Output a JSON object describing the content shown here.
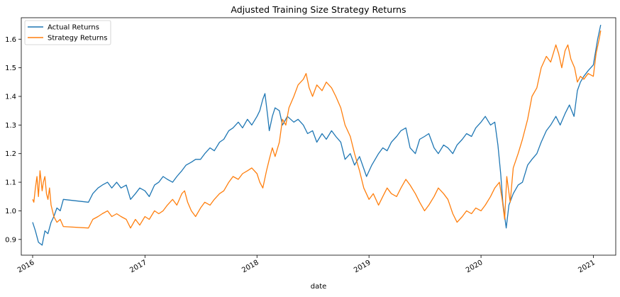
{
  "chart_data": {
    "type": "line",
    "title": "Adjusted Training Size Strategy Returns",
    "xlabel": "date",
    "ylabel": "",
    "xlim": [
      "2015-11-25",
      "2021-03-15"
    ],
    "ylim": [
      0.845,
      1.675
    ],
    "x_ticks": [
      "2016-01-01",
      "2017-01-01",
      "2018-01-01",
      "2019-01-01",
      "2020-01-01",
      "2021-01-01"
    ],
    "x_tick_labels": [
      "2016",
      "2017",
      "2018",
      "2019",
      "2020",
      "2021"
    ],
    "y_ticks": [
      0.9,
      1.0,
      1.1,
      1.2,
      1.3,
      1.4,
      1.5,
      1.6
    ],
    "y_tick_labels": [
      "0.9",
      "1.0",
      "1.1",
      "1.2",
      "1.3",
      "1.4",
      "1.5",
      "1.6"
    ],
    "grid": false,
    "legend_position": "upper-left",
    "series": [
      {
        "name": "Actual Returns",
        "color": "#1f77b4",
        "points": [
          [
            "2016-01-01",
            0.96
          ],
          [
            "2016-01-10",
            0.93
          ],
          [
            "2016-01-20",
            0.89
          ],
          [
            "2016-02-01",
            0.88
          ],
          [
            "2016-02-10",
            0.93
          ],
          [
            "2016-02-20",
            0.92
          ],
          [
            "2016-03-01",
            0.96
          ],
          [
            "2016-03-10",
            0.98
          ],
          [
            "2016-03-20",
            1.01
          ],
          [
            "2016-03-31",
            1.0
          ],
          [
            "2016-04-10",
            1.04
          ],
          [
            "2016-07-01",
            1.03
          ],
          [
            "2016-07-15",
            1.06
          ],
          [
            "2016-08-01",
            1.08
          ],
          [
            "2016-08-15",
            1.09
          ],
          [
            "2016-09-01",
            1.1
          ],
          [
            "2016-09-15",
            1.08
          ],
          [
            "2016-10-01",
            1.1
          ],
          [
            "2016-10-15",
            1.08
          ],
          [
            "2016-11-01",
            1.09
          ],
          [
            "2016-11-15",
            1.04
          ],
          [
            "2016-12-01",
            1.06
          ],
          [
            "2016-12-15",
            1.08
          ],
          [
            "2017-01-01",
            1.07
          ],
          [
            "2017-01-15",
            1.05
          ],
          [
            "2017-02-01",
            1.09
          ],
          [
            "2017-02-15",
            1.1
          ],
          [
            "2017-03-01",
            1.12
          ],
          [
            "2017-03-15",
            1.11
          ],
          [
            "2017-04-01",
            1.1
          ],
          [
            "2017-04-15",
            1.12
          ],
          [
            "2017-05-01",
            1.14
          ],
          [
            "2017-05-15",
            1.16
          ],
          [
            "2017-06-01",
            1.17
          ],
          [
            "2017-06-15",
            1.18
          ],
          [
            "2017-07-01",
            1.18
          ],
          [
            "2017-07-15",
            1.2
          ],
          [
            "2017-08-01",
            1.22
          ],
          [
            "2017-08-15",
            1.21
          ],
          [
            "2017-09-01",
            1.24
          ],
          [
            "2017-09-15",
            1.25
          ],
          [
            "2017-10-01",
            1.28
          ],
          [
            "2017-10-15",
            1.29
          ],
          [
            "2017-11-01",
            1.31
          ],
          [
            "2017-11-15",
            1.29
          ],
          [
            "2017-12-01",
            1.32
          ],
          [
            "2017-12-15",
            1.3
          ],
          [
            "2018-01-01",
            1.33
          ],
          [
            "2018-01-10",
            1.35
          ],
          [
            "2018-01-20",
            1.39
          ],
          [
            "2018-01-27",
            1.41
          ],
          [
            "2018-02-05",
            1.33
          ],
          [
            "2018-02-10",
            1.28
          ],
          [
            "2018-02-20",
            1.33
          ],
          [
            "2018-03-01",
            1.36
          ],
          [
            "2018-03-15",
            1.35
          ],
          [
            "2018-03-25",
            1.3
          ],
          [
            "2018-04-10",
            1.33
          ],
          [
            "2018-05-01",
            1.31
          ],
          [
            "2018-05-15",
            1.32
          ],
          [
            "2018-06-01",
            1.3
          ],
          [
            "2018-06-15",
            1.27
          ],
          [
            "2018-07-01",
            1.28
          ],
          [
            "2018-07-15",
            1.24
          ],
          [
            "2018-08-01",
            1.27
          ],
          [
            "2018-08-15",
            1.25
          ],
          [
            "2018-09-01",
            1.28
          ],
          [
            "2018-09-15",
            1.26
          ],
          [
            "2018-10-01",
            1.24
          ],
          [
            "2018-10-15",
            1.18
          ],
          [
            "2018-11-01",
            1.2
          ],
          [
            "2018-11-15",
            1.16
          ],
          [
            "2018-12-01",
            1.19
          ],
          [
            "2018-12-24",
            1.12
          ],
          [
            "2019-01-10",
            1.16
          ],
          [
            "2019-02-01",
            1.2
          ],
          [
            "2019-02-15",
            1.22
          ],
          [
            "2019-03-01",
            1.21
          ],
          [
            "2019-03-15",
            1.24
          ],
          [
            "2019-04-01",
            1.26
          ],
          [
            "2019-04-15",
            1.28
          ],
          [
            "2019-05-01",
            1.29
          ],
          [
            "2019-05-15",
            1.22
          ],
          [
            "2019-06-01",
            1.2
          ],
          [
            "2019-06-15",
            1.25
          ],
          [
            "2019-07-01",
            1.26
          ],
          [
            "2019-07-15",
            1.27
          ],
          [
            "2019-08-01",
            1.22
          ],
          [
            "2019-08-15",
            1.2
          ],
          [
            "2019-09-01",
            1.23
          ],
          [
            "2019-09-15",
            1.22
          ],
          [
            "2019-10-01",
            1.2
          ],
          [
            "2019-10-15",
            1.23
          ],
          [
            "2019-11-01",
            1.25
          ],
          [
            "2019-11-15",
            1.27
          ],
          [
            "2019-12-01",
            1.26
          ],
          [
            "2019-12-15",
            1.29
          ],
          [
            "2020-01-01",
            1.31
          ],
          [
            "2020-01-15",
            1.33
          ],
          [
            "2020-02-01",
            1.3
          ],
          [
            "2020-02-15",
            1.31
          ],
          [
            "2020-02-25",
            1.23
          ],
          [
            "2020-03-05",
            1.13
          ],
          [
            "2020-03-12",
            1.03
          ],
          [
            "2020-03-23",
            0.94
          ],
          [
            "2020-04-01",
            1.02
          ],
          [
            "2020-04-15",
            1.06
          ],
          [
            "2020-05-01",
            1.09
          ],
          [
            "2020-05-15",
            1.1
          ],
          [
            "2020-06-01",
            1.16
          ],
          [
            "2020-06-15",
            1.18
          ],
          [
            "2020-07-01",
            1.2
          ],
          [
            "2020-07-15",
            1.24
          ],
          [
            "2020-08-01",
            1.28
          ],
          [
            "2020-08-15",
            1.3
          ],
          [
            "2020-09-01",
            1.33
          ],
          [
            "2020-09-15",
            1.3
          ],
          [
            "2020-10-01",
            1.34
          ],
          [
            "2020-10-15",
            1.37
          ],
          [
            "2020-10-30",
            1.33
          ],
          [
            "2020-11-10",
            1.42
          ],
          [
            "2020-11-20",
            1.45
          ],
          [
            "2020-12-01",
            1.47
          ],
          [
            "2020-12-15",
            1.49
          ],
          [
            "2021-01-01",
            1.51
          ],
          [
            "2021-01-15",
            1.6
          ],
          [
            "2021-01-25",
            1.65
          ]
        ]
      },
      {
        "name": "Strategy Returns",
        "color": "#ff7f0e",
        "points": [
          [
            "2016-01-01",
            1.04
          ],
          [
            "2016-01-05",
            1.03
          ],
          [
            "2016-01-10",
            1.08
          ],
          [
            "2016-01-15",
            1.12
          ],
          [
            "2016-01-20",
            1.05
          ],
          [
            "2016-01-25",
            1.14
          ],
          [
            "2016-02-01",
            1.07
          ],
          [
            "2016-02-05",
            1.1
          ],
          [
            "2016-02-10",
            1.12
          ],
          [
            "2016-02-15",
            1.06
          ],
          [
            "2016-02-20",
            1.04
          ],
          [
            "2016-02-25",
            1.08
          ],
          [
            "2016-03-01",
            1.02
          ],
          [
            "2016-03-10",
            0.98
          ],
          [
            "2016-03-20",
            0.96
          ],
          [
            "2016-03-31",
            0.97
          ],
          [
            "2016-04-10",
            0.945
          ],
          [
            "2016-07-01",
            0.94
          ],
          [
            "2016-07-15",
            0.97
          ],
          [
            "2016-08-01",
            0.98
          ],
          [
            "2016-08-15",
            0.99
          ],
          [
            "2016-09-01",
            1.0
          ],
          [
            "2016-09-15",
            0.98
          ],
          [
            "2016-10-01",
            0.99
          ],
          [
            "2016-10-15",
            0.98
          ],
          [
            "2016-11-01",
            0.97
          ],
          [
            "2016-11-15",
            0.94
          ],
          [
            "2016-12-01",
            0.97
          ],
          [
            "2016-12-15",
            0.95
          ],
          [
            "2017-01-01",
            0.98
          ],
          [
            "2017-01-15",
            0.97
          ],
          [
            "2017-02-01",
            1.0
          ],
          [
            "2017-02-15",
            0.99
          ],
          [
            "2017-03-01",
            1.0
          ],
          [
            "2017-03-15",
            1.02
          ],
          [
            "2017-04-01",
            1.04
          ],
          [
            "2017-04-15",
            1.02
          ],
          [
            "2017-05-01",
            1.06
          ],
          [
            "2017-05-10",
            1.07
          ],
          [
            "2017-05-20",
            1.03
          ],
          [
            "2017-06-01",
            1.0
          ],
          [
            "2017-06-15",
            0.98
          ],
          [
            "2017-07-01",
            1.01
          ],
          [
            "2017-07-15",
            1.03
          ],
          [
            "2017-08-01",
            1.02
          ],
          [
            "2017-08-15",
            1.04
          ],
          [
            "2017-09-01",
            1.06
          ],
          [
            "2017-09-15",
            1.07
          ],
          [
            "2017-10-01",
            1.1
          ],
          [
            "2017-10-15",
            1.12
          ],
          [
            "2017-11-01",
            1.11
          ],
          [
            "2017-11-15",
            1.13
          ],
          [
            "2017-12-01",
            1.14
          ],
          [
            "2017-12-15",
            1.15
          ],
          [
            "2018-01-01",
            1.13
          ],
          [
            "2018-01-10",
            1.1
          ],
          [
            "2018-01-20",
            1.08
          ],
          [
            "2018-02-01",
            1.14
          ],
          [
            "2018-02-10",
            1.18
          ],
          [
            "2018-02-20",
            1.22
          ],
          [
            "2018-03-01",
            1.19
          ],
          [
            "2018-03-15",
            1.24
          ],
          [
            "2018-03-25",
            1.32
          ],
          [
            "2018-04-05",
            1.3
          ],
          [
            "2018-04-15",
            1.36
          ],
          [
            "2018-05-01",
            1.4
          ],
          [
            "2018-05-15",
            1.44
          ],
          [
            "2018-06-01",
            1.46
          ],
          [
            "2018-06-10",
            1.48
          ],
          [
            "2018-06-20",
            1.43
          ],
          [
            "2018-07-01",
            1.4
          ],
          [
            "2018-07-15",
            1.44
          ],
          [
            "2018-08-01",
            1.42
          ],
          [
            "2018-08-15",
            1.45
          ],
          [
            "2018-09-01",
            1.43
          ],
          [
            "2018-09-15",
            1.4
          ],
          [
            "2018-10-01",
            1.36
          ],
          [
            "2018-10-15",
            1.3
          ],
          [
            "2018-11-01",
            1.26
          ],
          [
            "2018-11-15",
            1.2
          ],
          [
            "2018-12-01",
            1.14
          ],
          [
            "2018-12-15",
            1.08
          ],
          [
            "2019-01-01",
            1.04
          ],
          [
            "2019-01-15",
            1.06
          ],
          [
            "2019-02-01",
            1.02
          ],
          [
            "2019-02-15",
            1.05
          ],
          [
            "2019-03-01",
            1.08
          ],
          [
            "2019-03-15",
            1.06
          ],
          [
            "2019-04-01",
            1.05
          ],
          [
            "2019-04-15",
            1.08
          ],
          [
            "2019-05-01",
            1.11
          ],
          [
            "2019-05-15",
            1.09
          ],
          [
            "2019-06-01",
            1.06
          ],
          [
            "2019-06-15",
            1.03
          ],
          [
            "2019-07-01",
            1.0
          ],
          [
            "2019-07-15",
            1.02
          ],
          [
            "2019-08-01",
            1.05
          ],
          [
            "2019-08-15",
            1.08
          ],
          [
            "2019-09-01",
            1.06
          ],
          [
            "2019-09-15",
            1.04
          ],
          [
            "2019-10-01",
            0.99
          ],
          [
            "2019-10-15",
            0.96
          ],
          [
            "2019-11-01",
            0.98
          ],
          [
            "2019-11-15",
            1.0
          ],
          [
            "2019-12-01",
            0.99
          ],
          [
            "2019-12-15",
            1.01
          ],
          [
            "2020-01-01",
            1.0
          ],
          [
            "2020-01-15",
            1.02
          ],
          [
            "2020-02-01",
            1.05
          ],
          [
            "2020-02-15",
            1.08
          ],
          [
            "2020-03-01",
            1.1
          ],
          [
            "2020-03-10",
            1.04
          ],
          [
            "2020-03-18",
            0.97
          ],
          [
            "2020-03-25",
            1.12
          ],
          [
            "2020-04-05",
            1.03
          ],
          [
            "2020-04-15",
            1.15
          ],
          [
            "2020-05-01",
            1.2
          ],
          [
            "2020-05-15",
            1.25
          ],
          [
            "2020-06-01",
            1.32
          ],
          [
            "2020-06-15",
            1.4
          ],
          [
            "2020-07-01",
            1.43
          ],
          [
            "2020-07-15",
            1.5
          ],
          [
            "2020-08-01",
            1.54
          ],
          [
            "2020-08-15",
            1.52
          ],
          [
            "2020-09-01",
            1.58
          ],
          [
            "2020-09-10",
            1.55
          ],
          [
            "2020-09-20",
            1.5
          ],
          [
            "2020-10-01",
            1.56
          ],
          [
            "2020-10-10",
            1.58
          ],
          [
            "2020-10-20",
            1.53
          ],
          [
            "2020-11-01",
            1.5
          ],
          [
            "2020-11-10",
            1.45
          ],
          [
            "2020-11-20",
            1.47
          ],
          [
            "2020-12-01",
            1.46
          ],
          [
            "2020-12-15",
            1.48
          ],
          [
            "2021-01-01",
            1.47
          ],
          [
            "2021-01-10",
            1.55
          ],
          [
            "2021-01-20",
            1.6
          ],
          [
            "2021-01-25",
            1.63
          ]
        ]
      }
    ]
  }
}
